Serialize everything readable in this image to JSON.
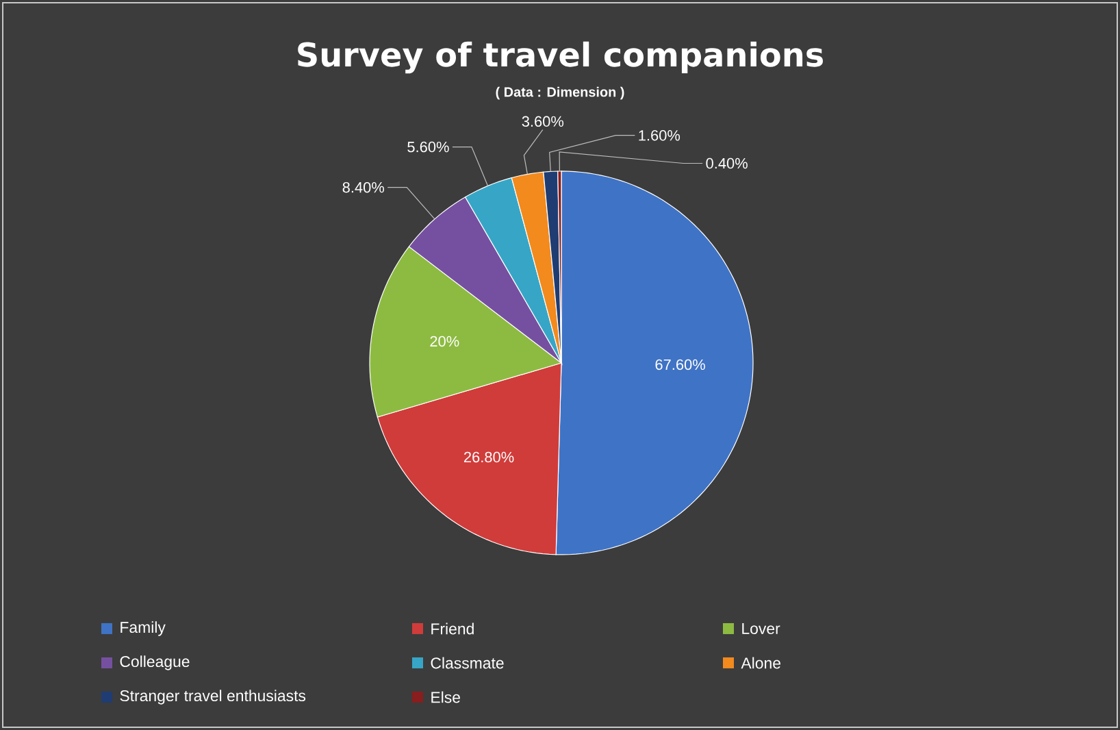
{
  "chart_data": {
    "type": "pie",
    "title": "Survey of travel companions",
    "subtitle": "( Data : Dimension )",
    "categories": [
      "Family",
      "Friend",
      "Lover",
      "Colleague",
      "Classmate",
      "Alone",
      "Stranger travel enthusiasts",
      "Else"
    ],
    "values": [
      67.6,
      26.8,
      20,
      8.4,
      5.6,
      3.6,
      1.6,
      0.4
    ],
    "value_labels": [
      "67.60%",
      "26.80%",
      "20%",
      "8.40%",
      "5.60%",
      "3.60%",
      "1.60%",
      "0.40%"
    ],
    "colors": [
      "#3f73c5",
      "#d03c3a",
      "#8dbb42",
      "#7650a0",
      "#37a6c6",
      "#f28a1e",
      "#1f3d73",
      "#8a1d1d"
    ],
    "legend": "bottom"
  }
}
